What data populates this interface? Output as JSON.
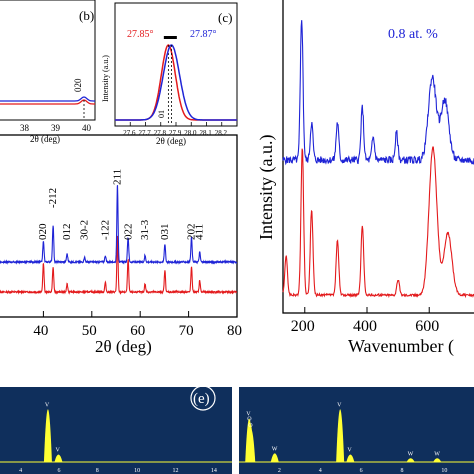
{
  "colors": {
    "red": "#e31a1c",
    "blue": "#1f24d6",
    "edx_bg": "#0f2f5c",
    "edx_peak": "#ffff33",
    "edx_text": "#ffffff",
    "black": "#000000"
  },
  "chart_data": [
    {
      "id": "xrd_main",
      "type": "line",
      "xlabel": "2θ (deg)",
      "xlim": [
        30,
        80
      ],
      "x_ticks": [
        "40",
        "50",
        "60",
        "70",
        "80"
      ],
      "series": [
        {
          "color": "red",
          "baseline": 0.12,
          "peaks": [
            [
              40.0,
              0.35
            ],
            [
              42.0,
              0.3
            ],
            [
              44.9,
              0.1
            ],
            [
              52.8,
              0.12
            ],
            [
              55.3,
              0.68
            ],
            [
              57.5,
              0.4
            ],
            [
              61.0,
              0.1
            ],
            [
              65.1,
              0.26
            ],
            [
              70.6,
              0.3
            ],
            [
              72.3,
              0.14
            ]
          ]
        },
        {
          "color": "blue",
          "baseline": 0.55,
          "peaks": [
            [
              30.5,
              0.4
            ],
            [
              40.0,
              0.25
            ],
            [
              42.0,
              0.45
            ],
            [
              44.9,
              0.1
            ],
            [
              48.5,
              0.06
            ],
            [
              52.8,
              0.08
            ],
            [
              55.3,
              0.95
            ],
            [
              57.5,
              0.3
            ],
            [
              61.0,
              0.08
            ],
            [
              65.1,
              0.22
            ],
            [
              70.6,
              0.3
            ],
            [
              72.3,
              0.12
            ]
          ]
        }
      ],
      "annotations": [
        {
          "text": "020",
          "x": 39.9
        },
        {
          "text": "-212",
          "x": 42.0
        },
        {
          "text": "012",
          "x": 44.9
        },
        {
          "text": "30-2",
          "x": 48.5
        },
        {
          "text": "-122",
          "x": 52.8
        },
        {
          "text": "211",
          "x": 55.3
        },
        {
          "text": "022",
          "x": 57.6
        },
        {
          "text": "31-3",
          "x": 61.0
        },
        {
          "text": "031",
          "x": 65.1
        },
        {
          "text": "202",
          "x": 70.6
        },
        {
          "text": "411",
          "x": 72.3
        }
      ]
    },
    {
      "id": "inset_b",
      "type": "line",
      "panel_label": "(b)",
      "xlabel": "2θ (deg)",
      "x_ticks": [
        "38",
        "39",
        "40"
      ],
      "peak_label": "020"
    },
    {
      "id": "inset_c",
      "type": "line",
      "panel_label": "(c)",
      "xlabel": "2θ (deg)",
      "ylabel": "Intensity (a.u.)",
      "xlim": [
        27.5,
        28.3
      ],
      "x_ticks": [
        "27.6",
        "27.7",
        "27.8",
        "27.9",
        "28.0",
        "28.1",
        "28.2"
      ],
      "red_peak_label": "27.85°",
      "blue_peak_label": "27.87°",
      "hkl_label": "01",
      "series": [
        {
          "color": "red",
          "center": 27.85,
          "width": 0.065
        },
        {
          "color": "blue",
          "center": 27.87,
          "width": 0.075
        }
      ]
    },
    {
      "id": "raman",
      "type": "line",
      "xlabel": "Wavenumber (",
      "ylabel": "Intensity (a.u.)",
      "xlim": [
        130,
        760
      ],
      "x_ticks": [
        "200",
        "400",
        "600"
      ],
      "legend": "0.8 at. %",
      "series": [
        {
          "color": "blue",
          "peaks": [
            [
              190,
              0.95
            ],
            [
              222,
              0.25
            ],
            [
              305,
              0.25
            ],
            [
              385,
              0.35
            ],
            [
              420,
              0.15
            ],
            [
              495,
              0.18
            ],
            [
              610,
              0.55
            ],
            [
              650,
              0.4
            ]
          ]
        },
        {
          "color": "red",
          "peaks": [
            [
              140,
              0.25
            ],
            [
              192,
              0.95
            ],
            [
              222,
              0.55
            ],
            [
              305,
              0.35
            ],
            [
              385,
              0.45
            ],
            [
              500,
              0.1
            ],
            [
              612,
              0.95
            ],
            [
              660,
              0.4
            ]
          ]
        }
      ]
    },
    {
      "id": "edx_e",
      "type": "bar",
      "panel_label": "(e)",
      "x_ticks": [
        "4",
        "6",
        "8",
        "10",
        "12",
        "14"
      ],
      "peaks": [
        {
          "x": 5.4,
          "h": 0.85,
          "label": "V"
        },
        {
          "x": 5.95,
          "h": 0.12,
          "label": "V"
        }
      ]
    },
    {
      "id": "edx_f",
      "type": "bar",
      "x_ticks": [
        "2",
        "4",
        "6",
        "8",
        "10"
      ],
      "peaks": [
        {
          "x": 0.5,
          "h": 0.7,
          "label": "V"
        },
        {
          "x": 0.55,
          "h": 0.62,
          "label": "O"
        },
        {
          "x": 0.6,
          "h": 0.52,
          "label": "O"
        },
        {
          "x": 1.75,
          "h": 0.14,
          "label": "W"
        },
        {
          "x": 4.95,
          "h": 0.85,
          "label": "V"
        },
        {
          "x": 5.45,
          "h": 0.12,
          "label": "V"
        },
        {
          "x": 8.4,
          "h": 0.06,
          "label": "W"
        },
        {
          "x": 9.7,
          "h": 0.06,
          "label": "W"
        }
      ]
    }
  ]
}
